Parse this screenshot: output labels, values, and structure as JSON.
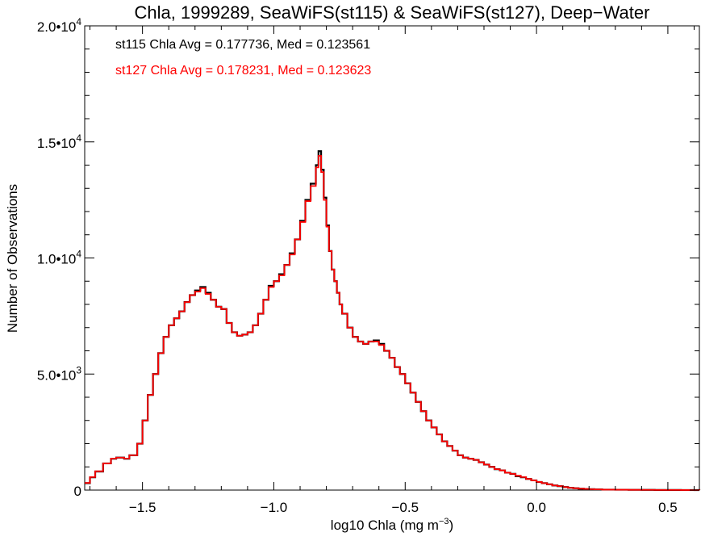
{
  "chart_data": {
    "type": "line",
    "title": "Chla, 1999289, SeaWiFS(st115) & SeaWiFS(st127), Deep−Water",
    "xlabel": "log10 Chla (mg m",
    "xlabel_sup": "−3",
    "xlabel_tail": ")",
    "ylabel": "Number of Observations",
    "xlim": [
      -1.72,
      0.62
    ],
    "ylim": [
      0,
      20000
    ],
    "x_ticks": [
      {
        "value": -1.5,
        "label": "−1.5"
      },
      {
        "value": -1.0,
        "label": "−1.0"
      },
      {
        "value": -0.5,
        "label": "−0.5"
      },
      {
        "value": 0.0,
        "label": "0.0"
      },
      {
        "value": 0.5,
        "label": "0.5"
      }
    ],
    "y_ticks": [
      {
        "value": 0,
        "mantissa": "0",
        "exponent": ""
      },
      {
        "value": 5000,
        "mantissa": "5.0•10",
        "exponent": "3"
      },
      {
        "value": 10000,
        "mantissa": "1.0•10",
        "exponent": "4"
      },
      {
        "value": 15000,
        "mantissa": "1.5•10",
        "exponent": "4"
      },
      {
        "value": 20000,
        "mantissa": "2.0•10",
        "exponent": "4"
      }
    ],
    "annotations": [
      {
        "text": "st115 Chla Avg = 0.177736, Med = 0.123561",
        "color": "#000000"
      },
      {
        "text": "st127 Chla Avg = 0.178231, Med = 0.123623",
        "color": "#ff0000"
      }
    ],
    "grid": false,
    "step": true,
    "series": [
      {
        "color": "#000000",
        "x": [
          -1.72,
          -1.7,
          -1.68,
          -1.65,
          -1.62,
          -1.6,
          -1.57,
          -1.55,
          -1.52,
          -1.5,
          -1.48,
          -1.46,
          -1.44,
          -1.42,
          -1.4,
          -1.38,
          -1.36,
          -1.34,
          -1.32,
          -1.3,
          -1.28,
          -1.26,
          -1.24,
          -1.22,
          -1.2,
          -1.18,
          -1.16,
          -1.14,
          -1.12,
          -1.1,
          -1.08,
          -1.06,
          -1.04,
          -1.02,
          -1.0,
          -0.98,
          -0.96,
          -0.94,
          -0.92,
          -0.9,
          -0.88,
          -0.86,
          -0.84,
          -0.83,
          -0.82,
          -0.81,
          -0.8,
          -0.79,
          -0.78,
          -0.77,
          -0.76,
          -0.75,
          -0.74,
          -0.72,
          -0.7,
          -0.68,
          -0.66,
          -0.64,
          -0.62,
          -0.6,
          -0.58,
          -0.56,
          -0.54,
          -0.52,
          -0.5,
          -0.48,
          -0.46,
          -0.44,
          -0.42,
          -0.4,
          -0.38,
          -0.36,
          -0.34,
          -0.32,
          -0.3,
          -0.28,
          -0.26,
          -0.24,
          -0.22,
          -0.2,
          -0.18,
          -0.16,
          -0.14,
          -0.12,
          -0.1,
          -0.08,
          -0.06,
          -0.04,
          -0.02,
          0.0,
          0.02,
          0.04,
          0.06,
          0.08,
          0.1,
          0.12,
          0.14,
          0.16,
          0.18,
          0.2,
          0.22,
          0.25,
          0.3,
          0.35,
          0.4,
          0.45,
          0.5,
          0.55,
          0.6,
          0.62
        ],
        "y": [
          300,
          550,
          800,
          1150,
          1350,
          1400,
          1350,
          1500,
          2000,
          3000,
          4100,
          5000,
          5900,
          6600,
          7100,
          7400,
          7700,
          8100,
          8400,
          8600,
          8750,
          8500,
          8200,
          7900,
          7800,
          7200,
          6800,
          6650,
          6700,
          6800,
          7100,
          7600,
          8200,
          8800,
          9000,
          9300,
          9700,
          10200,
          10800,
          11600,
          12500,
          13200,
          14000,
          14600,
          13800,
          12600,
          11400,
          10300,
          9500,
          9000,
          8500,
          8000,
          7600,
          7000,
          6600,
          6400,
          6300,
          6400,
          6450,
          6300,
          6000,
          5700,
          5300,
          5000,
          4600,
          4200,
          3800,
          3400,
          3000,
          2700,
          2400,
          2100,
          1900,
          1700,
          1500,
          1400,
          1350,
          1300,
          1200,
          1100,
          1000,
          900,
          850,
          750,
          700,
          600,
          550,
          480,
          420,
          350,
          300,
          250,
          200,
          170,
          130,
          100,
          80,
          60,
          50,
          40,
          30,
          20,
          15,
          10,
          8,
          5,
          3,
          2,
          1,
          0
        ]
      },
      {
        "color": "#ff0000",
        "x": [
          -1.72,
          -1.7,
          -1.68,
          -1.65,
          -1.62,
          -1.6,
          -1.57,
          -1.55,
          -1.52,
          -1.5,
          -1.48,
          -1.46,
          -1.44,
          -1.42,
          -1.4,
          -1.38,
          -1.36,
          -1.34,
          -1.32,
          -1.3,
          -1.28,
          -1.26,
          -1.24,
          -1.22,
          -1.2,
          -1.18,
          -1.16,
          -1.14,
          -1.12,
          -1.1,
          -1.08,
          -1.06,
          -1.04,
          -1.02,
          -1.0,
          -0.98,
          -0.96,
          -0.94,
          -0.92,
          -0.9,
          -0.88,
          -0.86,
          -0.84,
          -0.83,
          -0.82,
          -0.81,
          -0.8,
          -0.79,
          -0.78,
          -0.77,
          -0.76,
          -0.75,
          -0.74,
          -0.72,
          -0.7,
          -0.68,
          -0.66,
          -0.64,
          -0.62,
          -0.6,
          -0.58,
          -0.56,
          -0.54,
          -0.52,
          -0.5,
          -0.48,
          -0.46,
          -0.44,
          -0.42,
          -0.4,
          -0.38,
          -0.36,
          -0.34,
          -0.32,
          -0.3,
          -0.28,
          -0.26,
          -0.24,
          -0.22,
          -0.2,
          -0.18,
          -0.16,
          -0.14,
          -0.12,
          -0.1,
          -0.08,
          -0.06,
          -0.04,
          -0.02,
          0.0,
          0.02,
          0.04,
          0.06,
          0.08,
          0.1,
          0.12,
          0.14,
          0.16,
          0.18,
          0.2,
          0.22,
          0.25,
          0.3,
          0.35,
          0.4,
          0.45,
          0.5,
          0.55,
          0.6,
          0.62
        ],
        "y": [
          310,
          560,
          810,
          1150,
          1360,
          1400,
          1360,
          1500,
          2000,
          3000,
          4100,
          5000,
          5900,
          6600,
          7100,
          7400,
          7700,
          8100,
          8400,
          8550,
          8700,
          8450,
          8200,
          7900,
          7800,
          7200,
          6800,
          6650,
          6700,
          6800,
          7100,
          7600,
          8200,
          8750,
          9000,
          9250,
          9700,
          10150,
          10800,
          11550,
          12450,
          13100,
          13900,
          14400,
          13700,
          12500,
          11350,
          10300,
          9500,
          9000,
          8500,
          8000,
          7600,
          7000,
          6600,
          6400,
          6300,
          6400,
          6400,
          6250,
          6000,
          5700,
          5300,
          5000,
          4600,
          4200,
          3800,
          3400,
          3000,
          2700,
          2400,
          2100,
          1900,
          1700,
          1500,
          1400,
          1350,
          1300,
          1200,
          1100,
          1000,
          900,
          850,
          750,
          700,
          620,
          560,
          480,
          420,
          350,
          300,
          250,
          200,
          170,
          130,
          100,
          80,
          60,
          50,
          40,
          30,
          20,
          15,
          10,
          8,
          5,
          3,
          2,
          1,
          0
        ]
      }
    ]
  }
}
